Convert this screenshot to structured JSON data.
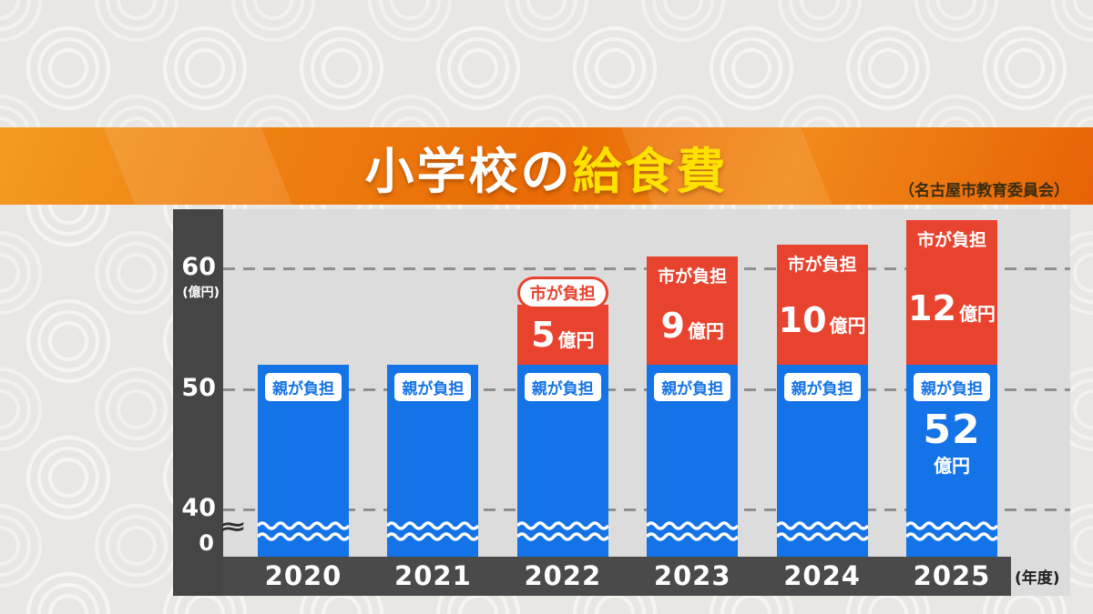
{
  "banner": {
    "title_prefix": "小学校の",
    "title_highlight": "給食費",
    "credit": "（名古屋市教育委員会）"
  },
  "chart_data": {
    "type": "bar",
    "stacked": true,
    "title": "小学校の給食費",
    "source": "名古屋市教育委員会",
    "categories": [
      "2020",
      "2021",
      "2022",
      "2023",
      "2024",
      "2025"
    ],
    "x_unit": "(年度)",
    "y_unit": "(億円)",
    "y_ticks": [
      0,
      40,
      50,
      60
    ],
    "ylim_visible": [
      40,
      66
    ],
    "axis_break": true,
    "axis_break_symbol": "≈",
    "grid": "dashed-horizontal",
    "series": [
      {
        "name": "親が負担",
        "color": "#1473e6",
        "unit": "億円",
        "values": [
          52,
          52,
          52,
          52,
          52,
          52
        ],
        "value_labels": [
          "",
          "",
          "",
          "",
          "",
          "52"
        ]
      },
      {
        "name": "市が負担",
        "color": "#e8432e",
        "unit": "億円",
        "values": [
          null,
          null,
          5,
          9,
          10,
          12
        ]
      }
    ]
  }
}
